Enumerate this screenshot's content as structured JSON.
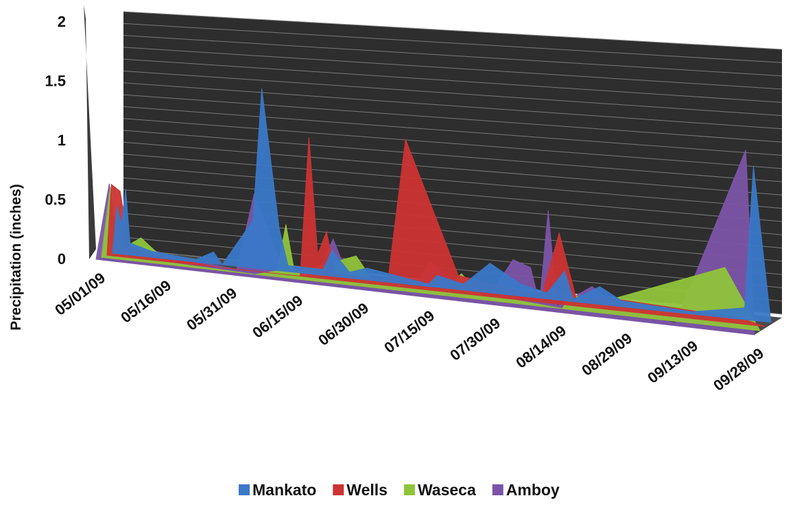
{
  "chart_data": {
    "type": "area",
    "title": "",
    "xlabel": "",
    "ylabel": "Precipitation (inches)",
    "ylim": [
      0,
      2
    ],
    "y_ticks": [
      "0",
      "0.5",
      "1",
      "1.5",
      "2"
    ],
    "x_tick_labels": [
      "05/01/09",
      "05/16/09",
      "05/31/09",
      "06/15/09",
      "06/30/09",
      "07/15/09",
      "07/30/09",
      "08/14/09",
      "08/29/09",
      "09/13/09",
      "09/28/09"
    ],
    "grid": true,
    "legend_position": "bottom",
    "three_d": true,
    "series": [
      {
        "name": "Mankato",
        "color": "#3a78c8",
        "points": [
          [
            "05/01/09",
            0
          ],
          [
            "05/02/09",
            0.4
          ],
          [
            "05/03/09",
            0.25
          ],
          [
            "05/04/09",
            0.55
          ],
          [
            "05/05/09",
            0.1
          ],
          [
            "05/10/09",
            0.05
          ],
          [
            "05/20/09",
            0.02
          ],
          [
            "05/24/09",
            0.1
          ],
          [
            "05/26/09",
            0
          ],
          [
            "06/02/09",
            0.4
          ],
          [
            "06/04/09",
            1.52
          ],
          [
            "06/08/09",
            0.35
          ],
          [
            "06/10/09",
            0.05
          ],
          [
            "06/18/09",
            0.05
          ],
          [
            "06/20/09",
            0.22
          ],
          [
            "06/24/09",
            0.05
          ],
          [
            "06/28/09",
            0.1
          ],
          [
            "07/12/09",
            0.02
          ],
          [
            "07/14/09",
            0.1
          ],
          [
            "07/20/09",
            0.05
          ],
          [
            "07/26/09",
            0.25
          ],
          [
            "08/02/09",
            0.1
          ],
          [
            "08/08/09",
            0.05
          ],
          [
            "08/12/09",
            0.25
          ],
          [
            "08/14/09",
            0.02
          ],
          [
            "08/20/09",
            0.15
          ],
          [
            "08/25/09",
            0.05
          ],
          [
            "09/10/09",
            0.02
          ],
          [
            "09/22/09",
            0.1
          ],
          [
            "09/24/09",
            1.3
          ],
          [
            "09/28/09",
            0
          ]
        ]
      },
      {
        "name": "Wells",
        "color": "#cc3333",
        "points": [
          [
            "05/01/09",
            0
          ],
          [
            "05/02/09",
            0.6
          ],
          [
            "05/04/09",
            0.55
          ],
          [
            "05/06/09",
            0.1
          ],
          [
            "05/12/09",
            0.05
          ],
          [
            "05/20/09",
            0.02
          ],
          [
            "05/26/09",
            0
          ],
          [
            "06/14/09",
            0
          ],
          [
            "06/16/09",
            1.18
          ],
          [
            "06/18/09",
            0.2
          ],
          [
            "06/20/09",
            0.4
          ],
          [
            "06/22/09",
            0.05
          ],
          [
            "07/04/09",
            0.05
          ],
          [
            "07/08/09",
            1.25
          ],
          [
            "07/20/09",
            0.15
          ],
          [
            "08/08/09",
            0.05
          ],
          [
            "08/12/09",
            0.6
          ],
          [
            "08/16/09",
            0.05
          ],
          [
            "08/22/09",
            0.1
          ],
          [
            "09/22/09",
            0.05
          ],
          [
            "09/28/09",
            0
          ]
        ]
      },
      {
        "name": "Waseca",
        "color": "#8fc43a",
        "points": [
          [
            "05/01/09",
            0
          ],
          [
            "05/03/09",
            0.6
          ],
          [
            "05/04/09",
            0.3
          ],
          [
            "05/05/09",
            0.45
          ],
          [
            "05/06/09",
            0.1
          ],
          [
            "05/10/09",
            0.2
          ],
          [
            "05/16/09",
            0.02
          ],
          [
            "06/05/09",
            0
          ],
          [
            "06/10/09",
            0.05
          ],
          [
            "06/12/09",
            0.45
          ],
          [
            "06/14/09",
            0.05
          ],
          [
            "06/28/09",
            0.25
          ],
          [
            "07/02/09",
            0.05
          ],
          [
            "07/18/09",
            0.05
          ],
          [
            "07/22/09",
            0.2
          ],
          [
            "07/26/09",
            0.05
          ],
          [
            "08/14/09",
            0
          ],
          [
            "08/16/09",
            0.15
          ],
          [
            "08/20/09",
            0.05
          ],
          [
            "09/20/09",
            0.5
          ],
          [
            "09/28/09",
            0
          ]
        ]
      },
      {
        "name": "Amboy",
        "color": "#7b54a8",
        "points": [
          [
            "05/01/09",
            0
          ],
          [
            "05/04/09",
            0.65
          ],
          [
            "05/06/09",
            0.05
          ],
          [
            "05/12/09",
            0.15
          ],
          [
            "05/18/09",
            0.1
          ],
          [
            "05/24/09",
            0.08
          ],
          [
            "06/02/09",
            0.05
          ],
          [
            "06/06/09",
            0.7
          ],
          [
            "06/12/09",
            0.15
          ],
          [
            "06/20/09",
            0.05
          ],
          [
            "06/24/09",
            0.4
          ],
          [
            "06/28/09",
            0.05
          ],
          [
            "07/12/09",
            0.05
          ],
          [
            "07/16/09",
            0.3
          ],
          [
            "07/22/09",
            0.15
          ],
          [
            "07/30/09",
            0.1
          ],
          [
            "08/04/09",
            0.4
          ],
          [
            "08/08/09",
            0.35
          ],
          [
            "08/10/09",
            0.05
          ],
          [
            "08/12/09",
            0.85
          ],
          [
            "08/14/09",
            0.05
          ],
          [
            "08/22/09",
            0.25
          ],
          [
            "08/28/09",
            0.1
          ],
          [
            "09/10/09",
            0.02
          ],
          [
            "09/26/09",
            1.55
          ],
          [
            "09/28/09",
            0
          ]
        ]
      }
    ]
  }
}
